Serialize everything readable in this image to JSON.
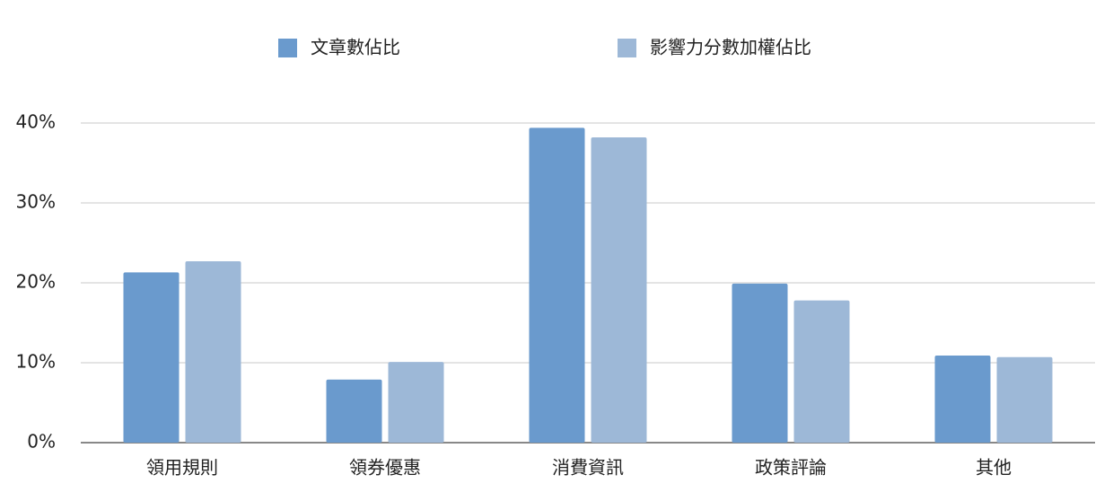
{
  "chart_data": {
    "type": "bar",
    "categories": [
      "領用規則",
      "領券優惠",
      "消費資訊",
      "政策評論",
      "其他"
    ],
    "series": [
      {
        "name": "文章數佔比",
        "color": "#6a9acd",
        "values": [
          21.3,
          7.9,
          39.4,
          19.9,
          10.9
        ]
      },
      {
        "name": "影響力分數加權佔比",
        "color": "#9db8d7",
        "values": [
          22.7,
          10.1,
          38.2,
          17.8,
          10.7
        ]
      }
    ],
    "ylim": [
      0,
      40
    ],
    "yticks": [
      {
        "value": 0,
        "label": "0%"
      },
      {
        "value": 10,
        "label": "10%"
      },
      {
        "value": 20,
        "label": "20%"
      },
      {
        "value": 30,
        "label": "30%"
      },
      {
        "value": 40,
        "label": "40%"
      }
    ],
    "grid": true,
    "legend": "top"
  }
}
